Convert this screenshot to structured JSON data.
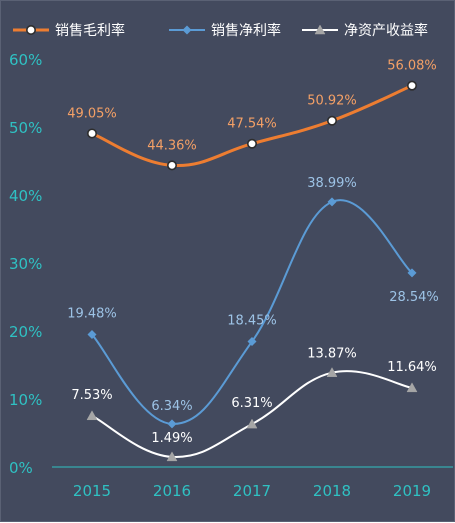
{
  "chart_data": {
    "type": "line",
    "title": "",
    "xlabel": "",
    "ylabel": "",
    "categories": [
      "2015",
      "2016",
      "2017",
      "2018",
      "2019"
    ],
    "ylim": [
      0,
      60
    ],
    "yticks": [
      "0%",
      "10%",
      "20%",
      "30%",
      "40%",
      "50%",
      "60%"
    ],
    "ytick_values": [
      0,
      10,
      20,
      30,
      40,
      50,
      60
    ],
    "grid": false,
    "legend_position": "top",
    "smooth": true,
    "series": [
      {
        "name": "销售毛利率",
        "values": [
          49.05,
          44.36,
          47.54,
          50.92,
          56.08
        ],
        "labels": [
          "49.05%",
          "44.36%",
          "47.54%",
          "50.92%",
          "56.08%"
        ],
        "color": "#ed7d31",
        "label_color": "#f4a066",
        "marker": "circle"
      },
      {
        "name": "销售净利率",
        "values": [
          19.48,
          6.34,
          18.45,
          38.99,
          28.54
        ],
        "labels": [
          "19.48%",
          "6.34%",
          "18.45%",
          "38.99%",
          "28.54%"
        ],
        "color": "#5b9bd5",
        "label_color": "#9dc3e6",
        "marker": "diamond"
      },
      {
        "name": "净资产收益率",
        "values": [
          7.53,
          1.49,
          6.31,
          13.87,
          11.64
        ],
        "labels": [
          "7.53%",
          "1.49%",
          "6.31%",
          "13.87%",
          "11.64%"
        ],
        "color": "#ffffff",
        "label_color": "#ffffff",
        "marker": "triangle"
      }
    ],
    "colors": {
      "background": "#434a5e",
      "axis_text": "#2fc1c3",
      "axis_line": "#2fc1c3"
    }
  }
}
